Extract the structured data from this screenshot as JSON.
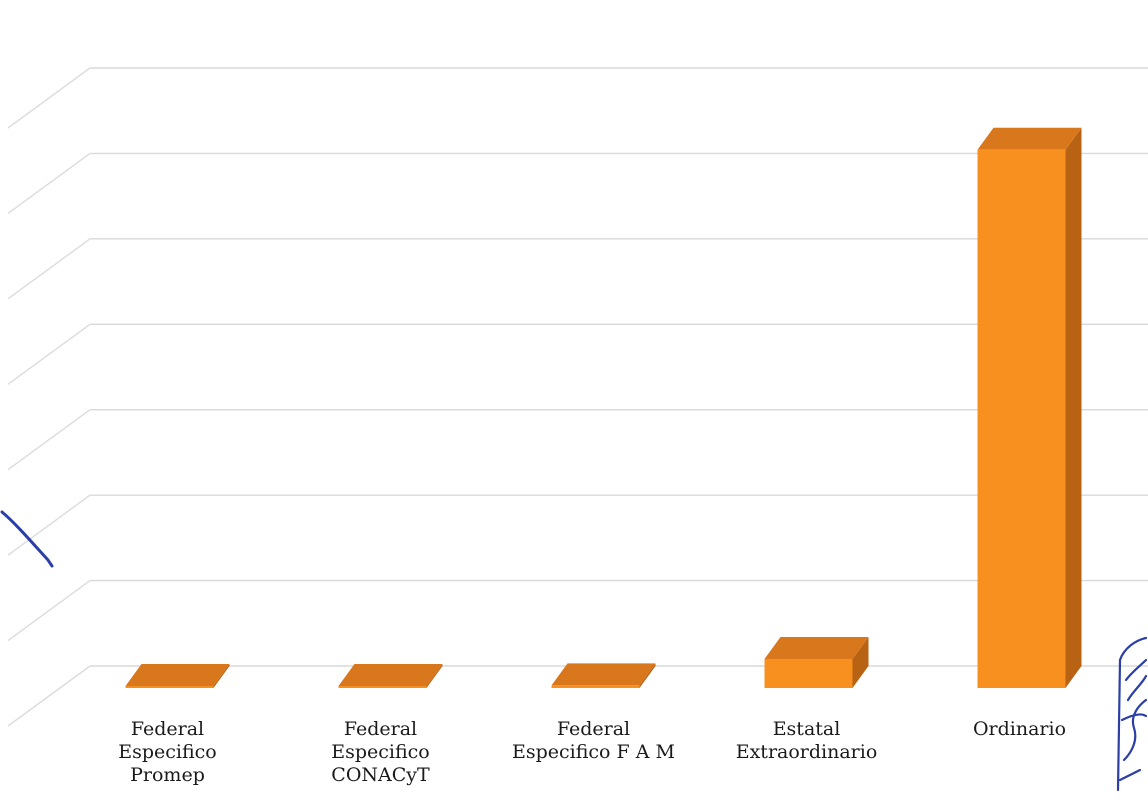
{
  "chart_data": {
    "type": "bar",
    "style": "3d-column",
    "categories": [
      "Federal\nEspecifico\nPromep",
      "Federal\nEspecifico\nCONACyT",
      "Federal\nEspecifico F A M",
      "Estatal\nExtraordinario",
      "Ordinario"
    ],
    "values": [
      0.1,
      0.1,
      0.3,
      3.4,
      63.0
    ],
    "ylim": [
      0,
      70
    ],
    "grid": true,
    "legend": "none",
    "title": "",
    "xlabel": "",
    "ylabel": "",
    "colors": {
      "bar_front": "#f7901e",
      "bar_side": "#b86214",
      "bar_top": "#d9771c",
      "grid": "#d9d9d9",
      "wall_edge": "#dcdcdc",
      "annotation_ink": "#2b3fa6"
    }
  },
  "annotations": {
    "signature": "handwritten signature (margin, right)",
    "mark": "pen stroke (margin, left)"
  }
}
